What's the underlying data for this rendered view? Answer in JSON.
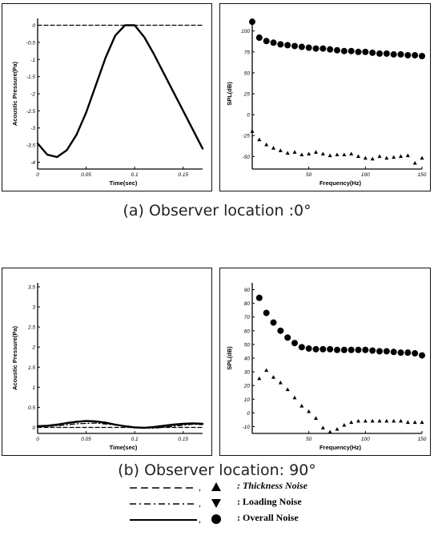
{
  "captions": {
    "a": "(a) Observer location :0°",
    "b": "(b) Observer location: 90°"
  },
  "legend": [
    {
      "label": ": Thickness Noise",
      "line_style": "dashed",
      "marker": "triangle-up",
      "italic": true
    },
    {
      "label": ": Loading Noise",
      "line_style": "dash-dot",
      "marker": "triangle-down",
      "italic": false
    },
    {
      "label": ": Overall Noise",
      "line_style": "solid",
      "marker": "circle",
      "italic": false
    }
  ],
  "chart_data": [
    {
      "type": "line",
      "xlabel": "Time(sec)",
      "ylabel": "Acoustic Pressure(Pa)",
      "xlim": [
        0,
        0.17
      ],
      "ylim": [
        -4.2,
        0.2
      ],
      "xticks": [
        {
          "v": 0,
          "t": "0"
        },
        {
          "v": 0.05,
          "t": "0.05"
        },
        {
          "v": 0.1,
          "t": "0.1"
        },
        {
          "v": 0.15,
          "t": "0.15"
        }
      ],
      "yticks": [
        {
          "v": 0,
          "t": "0"
        },
        {
          "v": -0.5,
          "t": "-0.5"
        },
        {
          "v": -1,
          "t": "-1"
        },
        {
          "v": -1.5,
          "t": "-1.5"
        },
        {
          "v": -2,
          "t": "-2"
        },
        {
          "v": -2.5,
          "t": "-2.5"
        },
        {
          "v": -3,
          "t": "-3"
        },
        {
          "v": -3.5,
          "t": "-3.5"
        },
        {
          "v": -4,
          "t": "-4"
        }
      ],
      "series": [
        {
          "name": "Thickness Noise",
          "style": "dashed",
          "x": [
            0,
            0.17
          ],
          "y": [
            0,
            0
          ]
        },
        {
          "name": "Overall Noise",
          "style": "solid",
          "x": [
            0,
            0.01,
            0.02,
            0.03,
            0.04,
            0.05,
            0.06,
            0.07,
            0.08,
            0.09,
            0.1,
            0.11,
            0.12,
            0.13,
            0.14,
            0.15,
            0.16,
            0.17
          ],
          "y": [
            -3.45,
            -3.78,
            -3.85,
            -3.65,
            -3.2,
            -2.55,
            -1.75,
            -0.95,
            -0.3,
            0,
            0,
            -0.35,
            -0.85,
            -1.4,
            -1.95,
            -2.5,
            -3.05,
            -3.6
          ]
        }
      ]
    },
    {
      "type": "scatter",
      "xlabel": "Frequency(Hz)",
      "ylabel": "SPL(dB)",
      "xlim": [
        0,
        150
      ],
      "ylim": [
        -65,
        115
      ],
      "xticks": [
        {
          "v": 50,
          "t": "50"
        },
        {
          "v": 100,
          "t": "100"
        },
        {
          "v": 150,
          "t": "150"
        }
      ],
      "yticks": [
        {
          "v": 100,
          "t": "100"
        },
        {
          "v": 75,
          "t": "75"
        },
        {
          "v": 50,
          "t": "50"
        },
        {
          "v": 25,
          "t": "25"
        },
        {
          "v": 0,
          "t": "0"
        },
        {
          "v": -25,
          "t": "-25"
        },
        {
          "v": -50,
          "t": "-50"
        }
      ],
      "series": [
        {
          "name": "Overall Noise",
          "marker": "circle",
          "x": [
            0,
            6.25,
            12.5,
            18.75,
            25,
            31.25,
            37.5,
            43.75,
            50,
            56.25,
            62.5,
            68.75,
            75,
            81.25,
            87.5,
            93.75,
            100,
            106.25,
            112.5,
            118.75,
            125,
            131.25,
            137.5,
            143.75,
            150
          ],
          "y": [
            111,
            92,
            88,
            86,
            84,
            83,
            82,
            81,
            80,
            79,
            79,
            78,
            77,
            76,
            76,
            75,
            75,
            74,
            73,
            73,
            72,
            72,
            71,
            71,
            70
          ]
        },
        {
          "name": "Thickness Noise",
          "marker": "triangle-up",
          "x": [
            0,
            6.25,
            12.5,
            18.75,
            25,
            31.25,
            37.5,
            43.75,
            50,
            56.25,
            62.5,
            68.75,
            75,
            81.25,
            87.5,
            93.75,
            100,
            106.25,
            112.5,
            118.75,
            125,
            131.25,
            137.5,
            143.75,
            150
          ],
          "y": [
            -20,
            -30,
            -36,
            -40,
            -43,
            -46,
            -45,
            -48,
            -47,
            -45,
            -47,
            -49,
            -48,
            -48,
            -47,
            -50,
            -52,
            -53,
            -50,
            -52,
            -51,
            -50,
            -49,
            -58,
            -52
          ]
        }
      ]
    },
    {
      "type": "line",
      "xlabel": "Time(sec)",
      "ylabel": "Acoustic Pressure(Pa)",
      "xlim": [
        0,
        0.17
      ],
      "ylim": [
        -0.15,
        3.6
      ],
      "xticks": [
        {
          "v": 0,
          "t": "0"
        },
        {
          "v": 0.05,
          "t": "0.05"
        },
        {
          "v": 0.1,
          "t": "0.1"
        },
        {
          "v": 0.15,
          "t": "0.15"
        }
      ],
      "yticks": [
        {
          "v": 0,
          "t": "0"
        },
        {
          "v": 0.5,
          "t": "0.5"
        },
        {
          "v": 1,
          "t": "1"
        },
        {
          "v": 1.5,
          "t": "1.5"
        },
        {
          "v": 2,
          "t": "2"
        },
        {
          "v": 2.5,
          "t": "2.5"
        },
        {
          "v": 3,
          "t": "3"
        },
        {
          "v": 3.5,
          "t": "3.5"
        }
      ],
      "series": [
        {
          "name": "Thickness Noise",
          "style": "dashed",
          "x": [
            0,
            0.17
          ],
          "y": [
            0,
            0
          ]
        },
        {
          "name": "Loading Noise",
          "style": "dash-dot",
          "x": [
            0,
            0.02,
            0.04,
            0.06,
            0.08,
            0.1,
            0.12,
            0.14,
            0.16,
            0.17
          ],
          "y": [
            0.02,
            0.04,
            0.09,
            0.11,
            0.06,
            0,
            -0.02,
            0.03,
            0.08,
            0.07
          ]
        },
        {
          "name": "Overall Noise",
          "style": "solid",
          "x": [
            0,
            0.01,
            0.02,
            0.03,
            0.04,
            0.05,
            0.06,
            0.07,
            0.08,
            0.09,
            0.1,
            0.11,
            0.12,
            0.13,
            0.14,
            0.15,
            0.16,
            0.17
          ],
          "y": [
            0.03,
            0.04,
            0.07,
            0.11,
            0.14,
            0.16,
            0.15,
            0.12,
            0.07,
            0.03,
            0,
            -0.01,
            0.01,
            0.04,
            0.07,
            0.09,
            0.1,
            0.09
          ]
        }
      ]
    },
    {
      "type": "scatter",
      "xlabel": "Frequency(Hz)",
      "ylabel": "SPL(dB)",
      "xlim": [
        0,
        150
      ],
      "ylim": [
        -15,
        95
      ],
      "xticks": [
        {
          "v": 50,
          "t": "50"
        },
        {
          "v": 100,
          "t": "100"
        },
        {
          "v": 150,
          "t": "150"
        }
      ],
      "yticks": [
        {
          "v": 90,
          "t": "90"
        },
        {
          "v": 80,
          "t": "80"
        },
        {
          "v": 70,
          "t": "70"
        },
        {
          "v": 60,
          "t": "60"
        },
        {
          "v": 50,
          "t": "50"
        },
        {
          "v": 40,
          "t": "40"
        },
        {
          "v": 30,
          "t": "30"
        },
        {
          "v": 20,
          "t": "20"
        },
        {
          "v": 10,
          "t": "10"
        },
        {
          "v": 0,
          "t": "0"
        },
        {
          "v": -10,
          "t": "-10"
        }
      ],
      "series": [
        {
          "name": "Overall Noise",
          "marker": "circle",
          "x": [
            6.25,
            12.5,
            18.75,
            25,
            31.25,
            37.5,
            43.75,
            50,
            56.25,
            62.5,
            68.75,
            75,
            81.25,
            87.5,
            93.75,
            100,
            106.25,
            112.5,
            118.75,
            125,
            131.25,
            137.5,
            143.75,
            150
          ],
          "y": [
            84,
            73,
            66,
            60,
            55,
            51,
            48,
            47,
            46.5,
            46.5,
            46.5,
            46,
            46,
            46,
            46,
            46,
            45.5,
            45,
            45,
            44.5,
            44,
            44,
            43.5,
            42
          ]
        },
        {
          "name": "Thickness Noise",
          "marker": "triangle-up",
          "x": [
            6.25,
            12.5,
            18.75,
            25,
            31.25,
            37.5,
            43.75,
            50,
            56.25,
            62.5,
            68.75,
            75,
            81.25,
            87.5,
            93.75,
            100,
            106.25,
            112.5,
            118.75,
            125,
            131.25,
            137.5,
            143.75,
            150
          ],
          "y": [
            25,
            31,
            26,
            22,
            17,
            11,
            5,
            1,
            -4,
            -11,
            -14,
            -12,
            -9,
            -7,
            -6,
            -6,
            -6,
            -6,
            -6,
            -6,
            -6,
            -7,
            -7,
            -7
          ]
        }
      ]
    }
  ]
}
